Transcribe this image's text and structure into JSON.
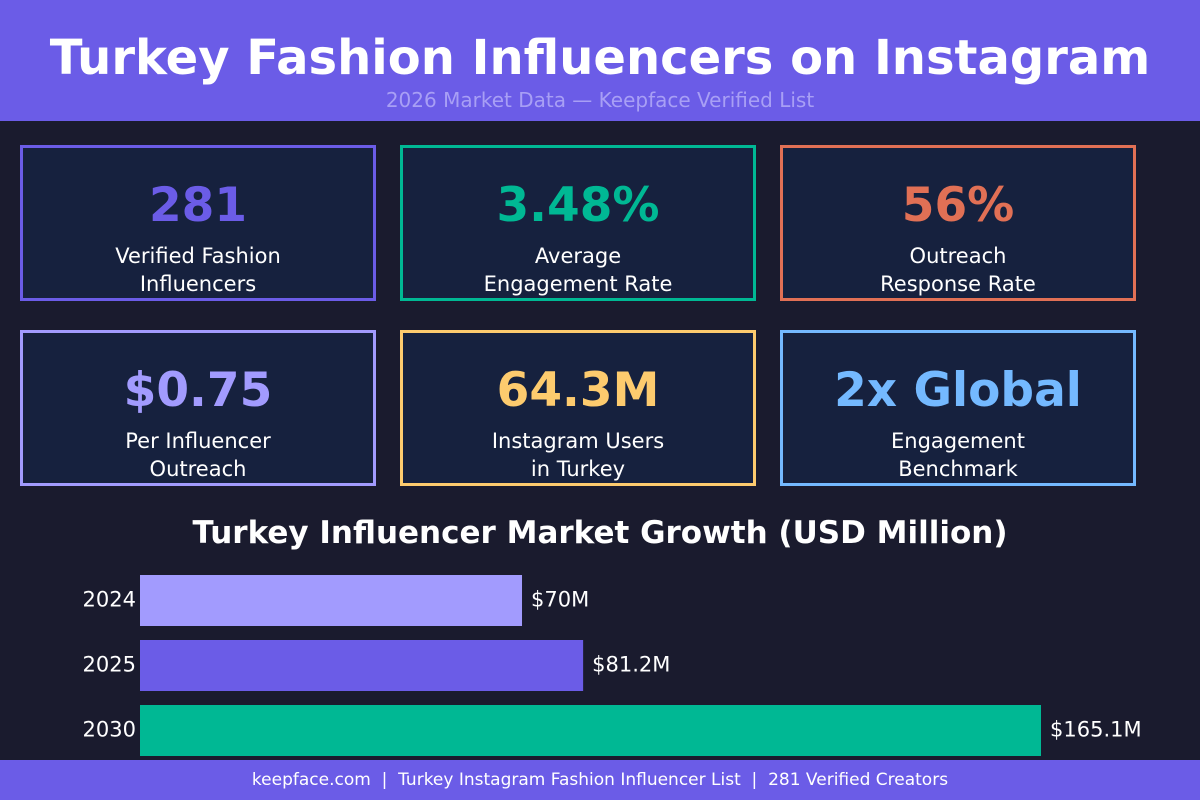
{
  "header": {
    "title": "Turkey Fashion Influencers on Instagram",
    "subtitle": "2026 Market Data — Keepface Verified List"
  },
  "stats": [
    {
      "value": "281",
      "label": "Verified Fashion\nInfluencers",
      "color": "#6b5ce7"
    },
    {
      "value": "3.48%",
      "label": "Average\nEngagement Rate",
      "color": "#00b894"
    },
    {
      "value": "56%",
      "label": "Outreach\nResponse Rate",
      "color": "#e17055"
    },
    {
      "value": "$0.75",
      "label": "Per Influencer\nOutreach",
      "color": "#a29bfe"
    },
    {
      "value": "64.3M",
      "label": "Instagram Users\nin Turkey",
      "color": "#fdcb6e"
    },
    {
      "value": "2x Global",
      "label": "Engagement\nBenchmark",
      "color": "#74b9ff"
    }
  ],
  "chart_data": {
    "type": "bar",
    "orientation": "horizontal",
    "title": "Turkey Influencer Market Growth (USD Million)",
    "categories": [
      "2024",
      "2025",
      "2030"
    ],
    "values": [
      70,
      81.2,
      165.1
    ],
    "value_labels": [
      "$70M",
      "$81.2M",
      "$165.1M"
    ],
    "colors": [
      "#a29bfe",
      "#6b5ce7",
      "#00b894"
    ],
    "xlim": [
      0,
      165.1
    ],
    "grid": false,
    "legend": "none"
  },
  "footer": {
    "text": "keepface.com  |  Turkey Instagram Fashion Influencer List  |  281 Verified Creators"
  }
}
